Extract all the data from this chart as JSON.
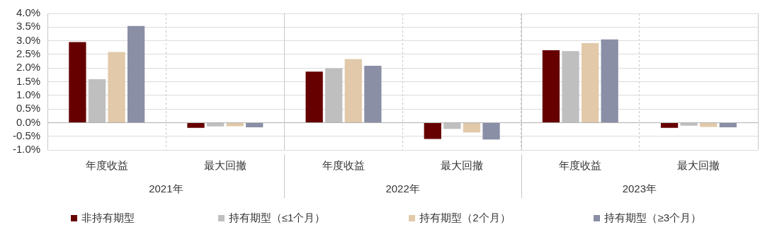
{
  "chart_data": {
    "type": "bar",
    "categories": [
      "年度收益",
      "最大回撤",
      "年度收益",
      "最大回撤",
      "年度收益",
      "最大回撤"
    ],
    "annotations": [
      "2021年",
      "2022年",
      "2023年"
    ],
    "series": [
      {
        "name": "非持有期型",
        "color": "#660000",
        "values": [
          2.95,
          -0.19,
          1.87,
          -0.6,
          2.65,
          -0.19
        ]
      },
      {
        "name": "持有期型（≤1个月）",
        "color": "#bfbfbf",
        "values": [
          1.59,
          -0.14,
          1.99,
          -0.23,
          2.62,
          -0.11
        ]
      },
      {
        "name": "持有期型（2个月）",
        "color": "#e1c9a9",
        "values": [
          2.59,
          -0.13,
          2.33,
          -0.36,
          2.91,
          -0.16
        ]
      },
      {
        "name": "持有期型（≥3个月）",
        "color": "#8a8fa6",
        "values": [
          3.54,
          -0.17,
          2.08,
          -0.62,
          3.05,
          -0.17
        ]
      }
    ],
    "ylim": [
      -1,
      4
    ],
    "yticks": [
      {
        "value": -1,
        "label": "-1.0%"
      },
      {
        "value": -0.5,
        "label": "-0.5%"
      },
      {
        "value": 0,
        "label": "0.0%"
      },
      {
        "value": 0.5,
        "label": "0.5%"
      },
      {
        "value": 1,
        "label": "1.0%"
      },
      {
        "value": 1.5,
        "label": "1.5%"
      },
      {
        "value": 2,
        "label": "2.0%"
      },
      {
        "value": 2.5,
        "label": "2.5%"
      },
      {
        "value": 3,
        "label": "3.0%"
      },
      {
        "value": 3.5,
        "label": "3.5%"
      },
      {
        "value": 4,
        "label": "4.0%"
      }
    ],
    "grid": true,
    "legend": "bottom"
  }
}
